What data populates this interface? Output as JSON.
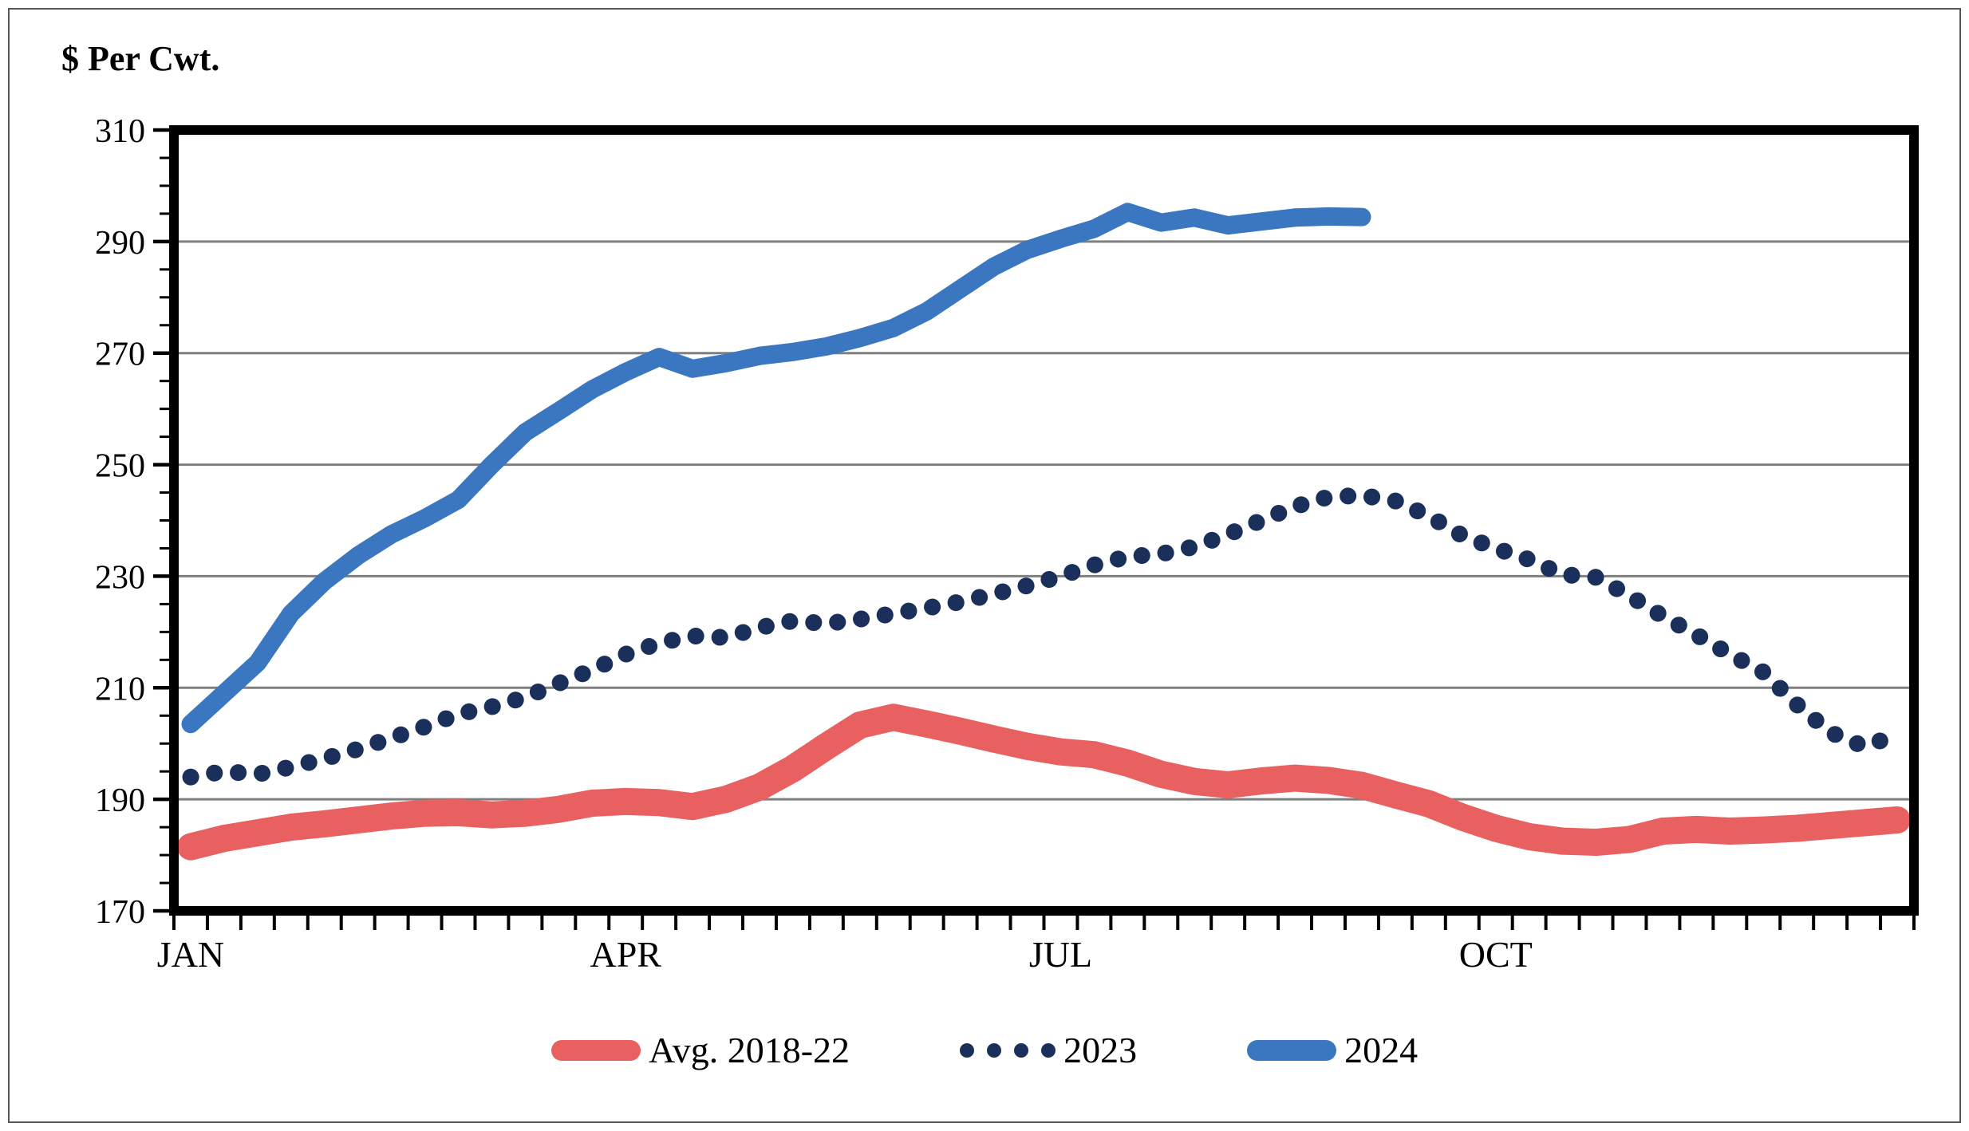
{
  "chart_title": "$ Per Cwt.",
  "chart_data": {
    "type": "line",
    "title": "$ Per Cwt.",
    "xlabel": "",
    "ylabel": "$ Per Cwt.",
    "grid": "horizontal-major",
    "legend_position": "bottom-center",
    "x_axis": {
      "unit": "weeks",
      "n_points": 52,
      "tick_every": 1,
      "month_labels": [
        {
          "label": "JAN",
          "week": 1
        },
        {
          "label": "APR",
          "week": 14
        },
        {
          "label": "JUL",
          "week": 27
        },
        {
          "label": "OCT",
          "week": 40
        }
      ]
    },
    "y_axis": {
      "min": 170,
      "max": 310,
      "major_step": 20,
      "minor_step": 5,
      "ticks": [
        170,
        190,
        210,
        230,
        250,
        270,
        290,
        310
      ]
    },
    "colors": {
      "grid": "#7f7f7f",
      "axis": "#000000",
      "avg_2018_22": "#e8605f",
      "y2023": "#1b2f5b",
      "y2024": "#3b77c1"
    },
    "series": [
      {
        "name": "Avg. 2018-22",
        "color": "#e8605f",
        "style": "solid",
        "stroke_width": 34,
        "values": [
          181.5,
          183,
          184,
          185,
          185.6,
          186.3,
          187,
          187.5,
          187.6,
          187.2,
          187.5,
          188.2,
          189.3,
          189.6,
          189.4,
          188.7,
          190,
          192.2,
          195.5,
          199.5,
          203.3,
          204.7,
          203.5,
          202.2,
          200.8,
          199.5,
          198.5,
          198,
          196.5,
          194.5,
          193.2,
          192.6,
          193.3,
          193.8,
          193.4,
          192.5,
          190.8,
          189.2,
          186.8,
          184.8,
          183.3,
          182.5,
          182.3,
          182.8,
          184.3,
          184.6,
          184.3,
          184.5,
          184.8,
          185.3,
          185.8,
          186.3
        ]
      },
      {
        "name": "2023",
        "color": "#1b2f5b",
        "style": "dotted",
        "stroke_width": 21,
        "values": [
          194,
          195,
          194.5,
          195.8,
          197.3,
          199,
          201,
          203,
          205.3,
          206.6,
          208.3,
          210.8,
          213.2,
          216,
          218,
          219.3,
          219,
          220.8,
          222,
          221.5,
          222.3,
          223.3,
          224.3,
          225.4,
          226.8,
          228.3,
          230,
          232,
          233.5,
          234,
          235.3,
          237.5,
          240,
          242.5,
          244.2,
          244.5,
          243.5,
          240.8,
          237.3,
          235,
          233,
          230.3,
          229.8,
          226.5,
          222.8,
          219.5,
          216,
          212.8,
          207,
          202,
          199.5,
          201.5
        ]
      },
      {
        "name": "2024",
        "color": "#3b77c1",
        "style": "solid",
        "stroke_width": 23,
        "values": [
          203.5,
          209,
          214.5,
          223.3,
          229.1,
          233.7,
          237.5,
          240.4,
          243.7,
          250,
          255.8,
          259.6,
          263.5,
          266.6,
          269.3,
          267.2,
          268.2,
          269.5,
          270.2,
          271.2,
          272.7,
          274.5,
          277.5,
          281.5,
          285.5,
          288.5,
          290.5,
          292.3,
          295.3,
          293.4,
          294.3,
          292.9,
          293.6,
          294.3,
          294.5,
          294.4
        ]
      }
    ]
  }
}
